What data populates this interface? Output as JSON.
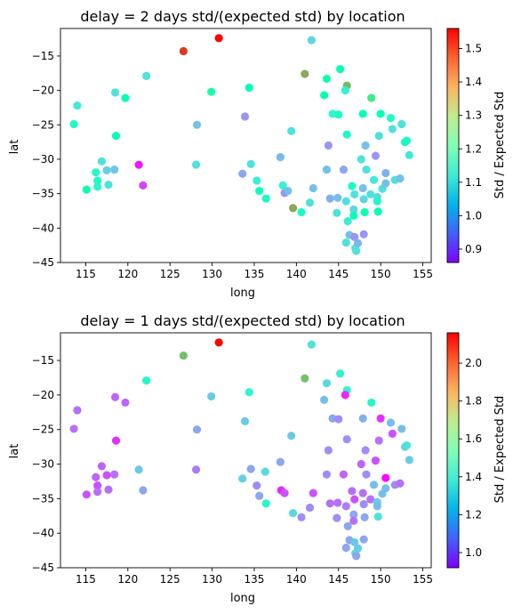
{
  "chart_data": [
    {
      "type": "scatter",
      "title": "delay = 2 days std/(expected std) by location",
      "xlabel": "long",
      "ylabel": "lat",
      "xlim": [
        112,
        156
      ],
      "ylim": [
        -45,
        -11
      ],
      "xticks": [
        115,
        120,
        125,
        130,
        135,
        140,
        145,
        150,
        155
      ],
      "yticks": [
        -45,
        -40,
        -35,
        -30,
        -25,
        -20,
        -15
      ],
      "grid": false,
      "colorbar": {
        "label": "Std / Expected Std",
        "colormap": "rainbow",
        "min": 0.86,
        "max": 1.56,
        "ticks": [
          0.9,
          1.0,
          1.1,
          1.2,
          1.3,
          1.4,
          1.5
        ]
      },
      "points": [
        {
          "x": 130.8,
          "y": -12.4,
          "v": 1.56
        },
        {
          "x": 126.6,
          "y": -14.3,
          "v": 1.51
        },
        {
          "x": 141.8,
          "y": -12.7,
          "v": 1.08
        },
        {
          "x": 145.2,
          "y": -16.9,
          "v": 1.22
        },
        {
          "x": 143.6,
          "y": -18.3,
          "v": 1.23
        },
        {
          "x": 141.0,
          "y": -17.6,
          "v": 1.4
        },
        {
          "x": 146.0,
          "y": -19.3,
          "v": 1.38
        },
        {
          "x": 122.2,
          "y": -17.9,
          "v": 1.1
        },
        {
          "x": 118.5,
          "y": -20.3,
          "v": 1.1
        },
        {
          "x": 119.7,
          "y": -21.1,
          "v": 1.2
        },
        {
          "x": 114.0,
          "y": -22.2,
          "v": 1.12
        },
        {
          "x": 113.6,
          "y": -24.9,
          "v": 1.17
        },
        {
          "x": 118.6,
          "y": -26.6,
          "v": 1.2
        },
        {
          "x": 129.9,
          "y": -20.2,
          "v": 1.24
        },
        {
          "x": 134.4,
          "y": -19.6,
          "v": 1.21
        },
        {
          "x": 133.9,
          "y": -23.8,
          "v": 1.0
        },
        {
          "x": 128.2,
          "y": -25.0,
          "v": 1.05
        },
        {
          "x": 128.1,
          "y": -30.8,
          "v": 1.1
        },
        {
          "x": 121.3,
          "y": -30.8,
          "v": 0.88
        },
        {
          "x": 121.8,
          "y": -33.8,
          "v": 0.92
        },
        {
          "x": 116.2,
          "y": -31.9,
          "v": 1.16
        },
        {
          "x": 116.9,
          "y": -30.3,
          "v": 1.1
        },
        {
          "x": 117.5,
          "y": -31.6,
          "v": 1.07
        },
        {
          "x": 118.4,
          "y": -31.5,
          "v": 1.06
        },
        {
          "x": 116.4,
          "y": -33.1,
          "v": 1.17
        },
        {
          "x": 117.7,
          "y": -33.7,
          "v": 1.1
        },
        {
          "x": 116.4,
          "y": -34.0,
          "v": 1.15
        },
        {
          "x": 115.1,
          "y": -34.4,
          "v": 1.23
        },
        {
          "x": 133.6,
          "y": -32.1,
          "v": 1.02
        },
        {
          "x": 134.6,
          "y": -30.7,
          "v": 1.1
        },
        {
          "x": 135.3,
          "y": -33.1,
          "v": 1.13
        },
        {
          "x": 135.6,
          "y": -34.6,
          "v": 1.2
        },
        {
          "x": 136.4,
          "y": -35.7,
          "v": 1.17
        },
        {
          "x": 138.1,
          "y": -29.7,
          "v": 1.04
        },
        {
          "x": 138.6,
          "y": -34.9,
          "v": 1.0
        },
        {
          "x": 138.4,
          "y": -33.8,
          "v": 1.13
        },
        {
          "x": 139.0,
          "y": -34.6,
          "v": 1.05
        },
        {
          "x": 139.4,
          "y": -25.9,
          "v": 1.1
        },
        {
          "x": 139.6,
          "y": -37.1,
          "v": 1.4
        },
        {
          "x": 140.6,
          "y": -37.7,
          "v": 1.17
        },
        {
          "x": 141.6,
          "y": -36.3,
          "v": 1.1
        },
        {
          "x": 142.0,
          "y": -34.2,
          "v": 1.05
        },
        {
          "x": 143.3,
          "y": -20.7,
          "v": 1.22
        },
        {
          "x": 143.8,
          "y": -28.0,
          "v": 1.0
        },
        {
          "x": 144.3,
          "y": -23.4,
          "v": 1.14
        },
        {
          "x": 145.0,
          "y": -23.5,
          "v": 1.17
        },
        {
          "x": 143.6,
          "y": -31.5,
          "v": 1.05
        },
        {
          "x": 144.0,
          "y": -35.7,
          "v": 1.03
        },
        {
          "x": 144.9,
          "y": -35.6,
          "v": 1.05
        },
        {
          "x": 144.8,
          "y": -37.8,
          "v": 1.1
        },
        {
          "x": 145.6,
          "y": -31.5,
          "v": 1.02
        },
        {
          "x": 145.8,
          "y": -20.0,
          "v": 1.14
        },
        {
          "x": 146.0,
          "y": -26.4,
          "v": 1.17
        },
        {
          "x": 145.9,
          "y": -36.1,
          "v": 1.1
        },
        {
          "x": 146.1,
          "y": -39.0,
          "v": 1.12
        },
        {
          "x": 145.9,
          "y": -42.1,
          "v": 1.1
        },
        {
          "x": 146.3,
          "y": -41.0,
          "v": 1.05
        },
        {
          "x": 146.6,
          "y": -33.9,
          "v": 1.17
        },
        {
          "x": 146.9,
          "y": -35.1,
          "v": 1.1
        },
        {
          "x": 146.8,
          "y": -37.3,
          "v": 1.08
        },
        {
          "x": 146.8,
          "y": -38.2,
          "v": 1.2
        },
        {
          "x": 146.9,
          "y": -41.3,
          "v": 1.0
        },
        {
          "x": 147.0,
          "y": -42.9,
          "v": 1.1
        },
        {
          "x": 147.1,
          "y": -43.3,
          "v": 1.1
        },
        {
          "x": 147.3,
          "y": -42.2,
          "v": 1.04
        },
        {
          "x": 147.7,
          "y": -30.0,
          "v": 1.1
        },
        {
          "x": 147.9,
          "y": -23.4,
          "v": 1.2
        },
        {
          "x": 147.9,
          "y": -34.2,
          "v": 1.05
        },
        {
          "x": 148.0,
          "y": -35.8,
          "v": 1.08
        },
        {
          "x": 148.1,
          "y": -37.7,
          "v": 1.22
        },
        {
          "x": 148.0,
          "y": -40.9,
          "v": 1.0
        },
        {
          "x": 148.2,
          "y": -28.0,
          "v": 1.05
        },
        {
          "x": 148.3,
          "y": -31.5,
          "v": 1.1
        },
        {
          "x": 148.9,
          "y": -21.1,
          "v": 1.3
        },
        {
          "x": 148.8,
          "y": -35.1,
          "v": 1.1
        },
        {
          "x": 149.2,
          "y": -33.0,
          "v": 1.12
        },
        {
          "x": 149.4,
          "y": -29.5,
          "v": 1.0
        },
        {
          "x": 149.6,
          "y": -35.5,
          "v": 1.08
        },
        {
          "x": 149.6,
          "y": -36.1,
          "v": 1.17
        },
        {
          "x": 149.7,
          "y": -37.6,
          "v": 1.2
        },
        {
          "x": 149.8,
          "y": -26.6,
          "v": 1.1
        },
        {
          "x": 150.0,
          "y": -23.4,
          "v": 1.2
        },
        {
          "x": 150.2,
          "y": -34.3,
          "v": 1.1
        },
        {
          "x": 150.6,
          "y": -32.0,
          "v": 1.03
        },
        {
          "x": 150.6,
          "y": -33.5,
          "v": 1.05
        },
        {
          "x": 151.2,
          "y": -24.0,
          "v": 1.17
        },
        {
          "x": 151.4,
          "y": -25.6,
          "v": 1.1
        },
        {
          "x": 151.7,
          "y": -33.0,
          "v": 1.1
        },
        {
          "x": 152.3,
          "y": -32.8,
          "v": 1.05
        },
        {
          "x": 152.5,
          "y": -24.9,
          "v": 1.1
        },
        {
          "x": 152.9,
          "y": -27.5,
          "v": 1.2
        },
        {
          "x": 153.1,
          "y": -27.3,
          "v": 1.17
        },
        {
          "x": 153.4,
          "y": -29.4,
          "v": 1.12
        }
      ]
    },
    {
      "type": "scatter",
      "title": "delay = 1 days std/(expected std) by location",
      "xlabel": "long",
      "ylabel": "lat",
      "xlim": [
        112,
        156
      ],
      "ylim": [
        -45,
        -11
      ],
      "xticks": [
        115,
        120,
        125,
        130,
        135,
        140,
        145,
        150,
        155
      ],
      "yticks": [
        -45,
        -40,
        -35,
        -30,
        -25,
        -20,
        -15
      ],
      "grid": false,
      "colorbar": {
        "label": "Std / Expected Std",
        "colormap": "rainbow",
        "min": 0.92,
        "max": 2.16,
        "ticks": [
          1.0,
          1.2,
          1.4,
          1.6,
          1.8,
          2.0
        ]
      },
      "points": [
        {
          "x": 130.8,
          "y": -12.4,
          "v": 2.16
        },
        {
          "x": 126.6,
          "y": -14.3,
          "v": 1.82
        },
        {
          "x": 141.8,
          "y": -12.7,
          "v": 1.35
        },
        {
          "x": 145.2,
          "y": -16.9,
          "v": 1.4
        },
        {
          "x": 143.6,
          "y": -18.3,
          "v": 1.32
        },
        {
          "x": 141.0,
          "y": -17.6,
          "v": 1.82
        },
        {
          "x": 146.0,
          "y": -19.3,
          "v": 1.42
        },
        {
          "x": 122.2,
          "y": -17.9,
          "v": 1.45
        },
        {
          "x": 118.5,
          "y": -20.3,
          "v": 1.08
        },
        {
          "x": 119.7,
          "y": -21.1,
          "v": 1.08
        },
        {
          "x": 114.0,
          "y": -22.2,
          "v": 1.1
        },
        {
          "x": 113.6,
          "y": -24.9,
          "v": 1.1
        },
        {
          "x": 118.6,
          "y": -26.6,
          "v": 1.0
        },
        {
          "x": 129.9,
          "y": -20.2,
          "v": 1.28
        },
        {
          "x": 134.4,
          "y": -19.6,
          "v": 1.42
        },
        {
          "x": 133.9,
          "y": -23.8,
          "v": 1.28
        },
        {
          "x": 128.2,
          "y": -25.0,
          "v": 1.2
        },
        {
          "x": 128.1,
          "y": -30.8,
          "v": 1.12
        },
        {
          "x": 121.3,
          "y": -30.8,
          "v": 1.28
        },
        {
          "x": 121.8,
          "y": -33.8,
          "v": 1.2
        },
        {
          "x": 116.2,
          "y": -31.9,
          "v": 1.08
        },
        {
          "x": 116.9,
          "y": -30.3,
          "v": 1.08
        },
        {
          "x": 117.5,
          "y": -31.6,
          "v": 1.05
        },
        {
          "x": 118.4,
          "y": -31.5,
          "v": 1.1
        },
        {
          "x": 116.4,
          "y": -33.1,
          "v": 1.05
        },
        {
          "x": 117.7,
          "y": -33.7,
          "v": 1.1
        },
        {
          "x": 116.4,
          "y": -34.0,
          "v": 1.1
        },
        {
          "x": 115.1,
          "y": -34.4,
          "v": 1.05
        },
        {
          "x": 133.6,
          "y": -32.1,
          "v": 1.3
        },
        {
          "x": 134.6,
          "y": -30.7,
          "v": 1.2
        },
        {
          "x": 135.3,
          "y": -33.1,
          "v": 1.15
        },
        {
          "x": 135.6,
          "y": -34.6,
          "v": 1.2
        },
        {
          "x": 136.4,
          "y": -35.7,
          "v": 1.45
        },
        {
          "x": 136.3,
          "y": -31.1,
          "v": 1.32
        },
        {
          "x": 138.1,
          "y": -29.7,
          "v": 1.2
        },
        {
          "x": 138.2,
          "y": -33.8,
          "v": 0.98
        },
        {
          "x": 138.6,
          "y": -34.2,
          "v": 1.05
        },
        {
          "x": 139.4,
          "y": -25.9,
          "v": 1.28
        },
        {
          "x": 139.6,
          "y": -37.1,
          "v": 1.32
        },
        {
          "x": 140.6,
          "y": -37.7,
          "v": 1.15
        },
        {
          "x": 141.6,
          "y": -36.3,
          "v": 1.15
        },
        {
          "x": 142.0,
          "y": -34.2,
          "v": 1.05
        },
        {
          "x": 143.3,
          "y": -20.7,
          "v": 1.25
        },
        {
          "x": 143.8,
          "y": -28.0,
          "v": 1.15
        },
        {
          "x": 144.3,
          "y": -23.4,
          "v": 1.2
        },
        {
          "x": 145.0,
          "y": -23.5,
          "v": 1.15
        },
        {
          "x": 143.6,
          "y": -31.5,
          "v": 1.15
        },
        {
          "x": 144.0,
          "y": -35.7,
          "v": 1.1
        },
        {
          "x": 144.9,
          "y": -35.6,
          "v": 1.1
        },
        {
          "x": 144.8,
          "y": -37.8,
          "v": 1.15
        },
        {
          "x": 145.6,
          "y": -31.5,
          "v": 1.08
        },
        {
          "x": 145.8,
          "y": -20.0,
          "v": 0.98
        },
        {
          "x": 146.0,
          "y": -26.4,
          "v": 1.15
        },
        {
          "x": 145.9,
          "y": -36.1,
          "v": 1.12
        },
        {
          "x": 146.1,
          "y": -39.0,
          "v": 1.2
        },
        {
          "x": 145.9,
          "y": -42.1,
          "v": 1.2
        },
        {
          "x": 146.3,
          "y": -41.0,
          "v": 1.2
        },
        {
          "x": 146.6,
          "y": -33.9,
          "v": 1.1
        },
        {
          "x": 146.9,
          "y": -35.1,
          "v": 1.05
        },
        {
          "x": 146.8,
          "y": -37.3,
          "v": 1.2
        },
        {
          "x": 146.8,
          "y": -38.2,
          "v": 1.1
        },
        {
          "x": 146.9,
          "y": -41.3,
          "v": 1.28
        },
        {
          "x": 147.0,
          "y": -42.9,
          "v": 1.32
        },
        {
          "x": 147.1,
          "y": -43.3,
          "v": 1.2
        },
        {
          "x": 147.3,
          "y": -42.2,
          "v": 1.28
        },
        {
          "x": 147.7,
          "y": -30.0,
          "v": 1.08
        },
        {
          "x": 147.9,
          "y": -23.4,
          "v": 1.22
        },
        {
          "x": 147.9,
          "y": -34.2,
          "v": 1.1
        },
        {
          "x": 148.0,
          "y": -35.8,
          "v": 1.15
        },
        {
          "x": 148.1,
          "y": -37.7,
          "v": 1.2
        },
        {
          "x": 148.0,
          "y": -40.9,
          "v": 1.2
        },
        {
          "x": 148.2,
          "y": -28.0,
          "v": 1.15
        },
        {
          "x": 148.3,
          "y": -31.5,
          "v": 1.15
        },
        {
          "x": 148.9,
          "y": -21.1,
          "v": 1.45
        },
        {
          "x": 148.8,
          "y": -35.1,
          "v": 1.1
        },
        {
          "x": 149.2,
          "y": -33.0,
          "v": 1.25
        },
        {
          "x": 149.4,
          "y": -29.5,
          "v": 1.05
        },
        {
          "x": 149.6,
          "y": -35.5,
          "v": 1.3
        },
        {
          "x": 149.6,
          "y": -36.1,
          "v": 1.25
        },
        {
          "x": 149.7,
          "y": -37.6,
          "v": 1.35
        },
        {
          "x": 149.8,
          "y": -26.6,
          "v": 1.1
        },
        {
          "x": 150.0,
          "y": -23.4,
          "v": 1.0
        },
        {
          "x": 150.2,
          "y": -34.3,
          "v": 1.25
        },
        {
          "x": 150.6,
          "y": -32.0,
          "v": 0.93
        },
        {
          "x": 150.6,
          "y": -33.5,
          "v": 1.25
        },
        {
          "x": 151.2,
          "y": -24.0,
          "v": 1.25
        },
        {
          "x": 151.4,
          "y": -25.6,
          "v": 1.05
        },
        {
          "x": 151.7,
          "y": -33.0,
          "v": 1.15
        },
        {
          "x": 152.3,
          "y": -32.8,
          "v": 1.1
        },
        {
          "x": 152.5,
          "y": -24.9,
          "v": 1.25
        },
        {
          "x": 152.9,
          "y": -27.5,
          "v": 1.28
        },
        {
          "x": 153.1,
          "y": -27.3,
          "v": 1.35
        },
        {
          "x": 153.4,
          "y": -29.4,
          "v": 1.28
        }
      ]
    }
  ]
}
